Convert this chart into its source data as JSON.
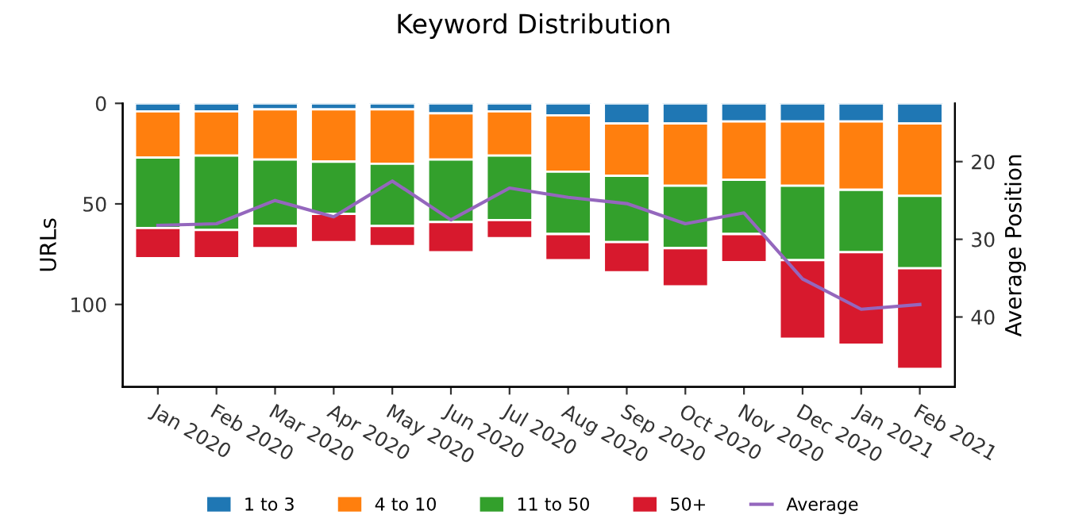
{
  "chart_data": {
    "type": "bar",
    "title": "Keyword Distribution",
    "xlabel": null,
    "ylabel": "URLs",
    "y2label": "Average Position",
    "categories": [
      "Jan 2020",
      "Feb 2020",
      "Mar 2020",
      "Apr 2020",
      "May 2020",
      "Jun 2020",
      "Jul 2020",
      "Aug 2020",
      "Sep 2020",
      "Oct 2020",
      "Nov 2020",
      "Dec 2020",
      "Jan 2021",
      "Feb 2021"
    ],
    "stacked": true,
    "series": [
      {
        "name": "1 to 3",
        "color": "#1f77b4",
        "values": [
          4,
          4,
          3,
          3,
          3,
          5,
          4,
          6,
          10,
          10,
          9,
          9,
          9,
          10
        ]
      },
      {
        "name": "4 to 10",
        "color": "#ff7f0e",
        "values": [
          23,
          22,
          25,
          26,
          27,
          23,
          22,
          28,
          26,
          31,
          29,
          32,
          34,
          36
        ]
      },
      {
        "name": "11 to 50",
        "color": "#33a02c",
        "values": [
          35,
          37,
          33,
          26,
          31,
          31,
          32,
          31,
          33,
          31,
          27,
          37,
          31,
          36
        ]
      },
      {
        "name": "50+",
        "color": "#d7192d",
        "values": [
          15,
          14,
          11,
          14,
          10,
          15,
          9,
          13,
          15,
          19,
          14,
          39,
          46,
          50
        ]
      },
      {
        "name": "Average",
        "type": "line",
        "axis": "y2",
        "color": "#9467bd",
        "marker": "none",
        "line_style": "solid",
        "values": [
          28.2,
          28.0,
          25.0,
          27.1,
          22.5,
          27.5,
          23.4,
          24.6,
          25.4,
          28.0,
          26.6,
          35.1,
          39.0,
          38.4
        ]
      }
    ],
    "ylim": [
      141,
      0
    ],
    "yticks": [
      0,
      50,
      100
    ],
    "y2lim": [
      49,
      12.5
    ],
    "y2ticks": [
      20,
      30,
      40
    ],
    "grid": false,
    "legend": "bottom"
  }
}
